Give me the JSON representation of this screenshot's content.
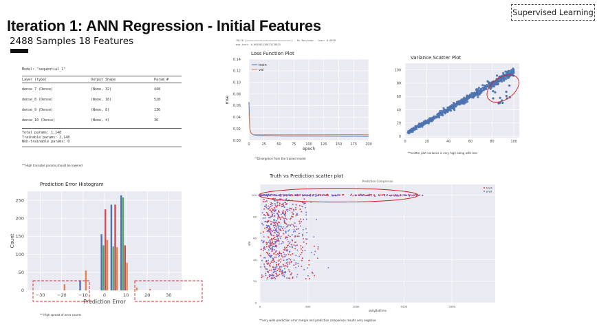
{
  "header": {
    "badge": "Supervised Learning",
    "title": "Iteration 1: ANN Regression - Initial Features",
    "subtitle": "2488 Samples 18 Features"
  },
  "model_summary": {
    "name_line": "Model: \"sequential_1\"",
    "columns": [
      "Layer (type)",
      "Output Shape",
      "Param #"
    ],
    "layers": [
      {
        "layer": "dense_7 (Dense)",
        "shape": "(None, 32)",
        "params": "448"
      },
      {
        "layer": "dense_8 (Dense)",
        "shape": "(None, 16)",
        "params": "528"
      },
      {
        "layer": "dense_9 (Dense)",
        "shape": "(None, 8)",
        "params": "136"
      },
      {
        "layer": "dense_10 (Dense)",
        "shape": "(None, 4)",
        "params": "36"
      }
    ],
    "totals": [
      "Total params: 1,148",
      "Trainable params: 1,148",
      "Non-trainable params: 0"
    ],
    "note": "** High trainable params,should be lowered"
  },
  "training_log": {
    "line1": "78/78 [==============================] - 0s 3ms/step - loss: 0.0078",
    "line2": "mse_test: 0.007801138673178815"
  },
  "loss_plot": {
    "title": "Loss Function Plot",
    "note": "**Divergence from the trained model",
    "colors": {
      "train": "#4c72b0",
      "val": "#dd8452"
    },
    "chart_data": {
      "type": "line",
      "xlabel": "epoch",
      "ylabel": "mse",
      "xlim": [
        0,
        200
      ],
      "ylim": [
        0,
        0.14
      ],
      "x_ticks": [
        "0",
        "25",
        "50",
        "75",
        "100",
        "125",
        "150",
        "175",
        "200"
      ],
      "y_ticks": [
        "0.00",
        "0.02",
        "0.04",
        "0.06",
        "0.08",
        "0.10",
        "0.12",
        "0.14"
      ],
      "legend": "top-left",
      "series": [
        {
          "name": "train",
          "x": [
            0,
            1,
            2,
            3,
            5,
            8,
            12,
            20,
            35,
            60,
            100,
            150,
            200
          ],
          "values": [
            0.066,
            0.028,
            0.018,
            0.014,
            0.011,
            0.0095,
            0.0088,
            0.0082,
            0.0078,
            0.0075,
            0.0073,
            0.0072,
            0.0071
          ]
        },
        {
          "name": "val",
          "x": [
            0,
            1,
            2,
            3,
            5,
            8,
            12,
            20,
            35,
            60,
            100,
            150,
            200
          ],
          "values": [
            0.048,
            0.024,
            0.016,
            0.013,
            0.011,
            0.01,
            0.0098,
            0.0097,
            0.0097,
            0.0098,
            0.0099,
            0.01,
            0.01
          ]
        }
      ]
    }
  },
  "variance_plot": {
    "title": "Variance Scatter Plot",
    "note": "**scatter plot variance is very high along with loss",
    "chart_data": {
      "type": "scatter",
      "xlim": [
        0,
        105
      ],
      "ylim": [
        -2,
        110
      ],
      "x_ticks": [
        "0",
        "20",
        "40",
        "60",
        "80",
        "100"
      ],
      "y_ticks": [
        "0",
        "20",
        "40",
        "60",
        "80",
        "100"
      ],
      "trend": {
        "from": [
          2,
          5
        ],
        "to": [
          100,
          98
        ],
        "spread": 8
      }
    }
  },
  "histogram": {
    "title": "Prediction Error Histogram",
    "note": "** High spread of error counts",
    "colors": [
      "#4c72b0",
      "#55a868",
      "#c44e52",
      "#dd8452"
    ],
    "chart_data": {
      "type": "bar",
      "xlabel": "Prediction Error",
      "ylabel": "Count",
      "xlim": [
        -36,
        36
      ],
      "ylim": [
        0,
        275
      ],
      "x_ticks": [
        "−30",
        "−20",
        "−10",
        "0",
        "10",
        "20",
        "30"
      ],
      "y_ticks": [
        "0",
        "50",
        "100",
        "150",
        "200",
        "250"
      ],
      "bins": [
        {
          "center": -20.0,
          "values": [
            0,
            0,
            0,
            17
          ]
        },
        {
          "center": -10.0,
          "values": [
            28,
            0,
            0,
            55
          ]
        },
        {
          "center": 0.0,
          "values": [
            156,
            125,
            225,
            140
          ]
        },
        {
          "center": 4.6,
          "values": [
            238,
            122,
            238,
            120
          ]
        },
        {
          "center": 9.2,
          "values": [
            264,
            258,
            125,
            77
          ]
        },
        {
          "center": 13.8,
          "values": [
            0,
            0,
            0,
            8
          ]
        },
        {
          "center": 20.0,
          "values": [
            0,
            0,
            0,
            4
          ]
        }
      ]
    }
  },
  "truth_plot": {
    "title": "Truth vs Prediction scatter plot",
    "inner_title": "Prediction Comparison",
    "note": "**very wide prediction error margin and prediction comparison results very negative",
    "colors": {
      "truth": "#e8333a",
      "pred": "#6b6bd6"
    },
    "chart_data": {
      "type": "scatter",
      "xlabel": "dollyBrdFrms",
      "ylabel": "ofe",
      "xlim": [
        0,
        2450
      ],
      "ylim": [
        0,
        110
      ],
      "x_ticks": [
        "0",
        "500",
        "1000",
        "1500",
        "2000"
      ],
      "y_ticks": [
        "0",
        "20",
        "40",
        "60",
        "80",
        "100"
      ],
      "legend": "top-right",
      "series": [
        {
          "name": "truth"
        },
        {
          "name": "pred"
        }
      ]
    }
  }
}
